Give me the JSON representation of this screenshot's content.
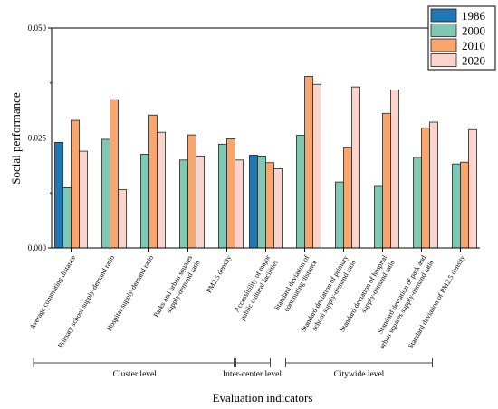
{
  "chart_data": {
    "type": "bar",
    "ylabel": "Social  performance",
    "xlabel": "Evaluation indicators",
    "ylim": [
      0,
      0.05
    ],
    "yticks": [
      "0.000",
      "0.025",
      "0.050"
    ],
    "grid": false,
    "legend_position": "top-right",
    "categories": [
      "Average commuting distance",
      "Primary school supply-demand ratio",
      "Hospital supply-demand ratio",
      "Parks and urban squares supply-demand ratio",
      "PM2.5 density",
      "Accessibility of major public cultural facilities",
      "Standard deviation of commuting distance",
      "Standard deviation of primary school supply-demand ratio",
      "Standard deviation of hospital supply-demand ratio",
      "Standard deviation of park and urban squares supply-demand ratio",
      "Standard deviation of PM2.5 density"
    ],
    "category_lines": [
      [
        "Average commuting distance"
      ],
      [
        "Primary school supply-demand ratio"
      ],
      [
        "Hospital supply-demand ratio"
      ],
      [
        "Parks and urban squares",
        "supply-demand ratio"
      ],
      [
        "PM2.5 density"
      ],
      [
        "Accessibility of major",
        "public cultural facilities"
      ],
      [
        "Standard deviation of",
        "commuting distance"
      ],
      [
        "Standard deviation of primary",
        "school supply-demand ratio"
      ],
      [
        "Standard deviation of hospital",
        "supply-demand ratio"
      ],
      [
        "Standard deviation of park and",
        "urban squares supply-demand ratio"
      ],
      [
        "Standard deviation of PM2.5 density"
      ]
    ],
    "series": [
      {
        "name": "1986",
        "color": "#1f77b4",
        "values": [
          0.024,
          null,
          null,
          null,
          null,
          0.0211,
          null,
          null,
          null,
          null,
          null
        ]
      },
      {
        "name": "2000",
        "color": "#7fc8b4",
        "values": [
          0.0137,
          0.0247,
          0.0213,
          0.02,
          0.0236,
          0.0209,
          0.0256,
          0.015,
          0.014,
          0.0206,
          0.0191
        ]
      },
      {
        "name": "2010",
        "color": "#f9a66e",
        "values": [
          0.029,
          0.0337,
          0.0302,
          0.0257,
          0.0248,
          0.0194,
          0.039,
          0.0228,
          0.0306,
          0.0273,
          0.0195
        ]
      },
      {
        "name": "2020",
        "color": "#fbd3cd",
        "values": [
          0.022,
          0.0133,
          0.0263,
          0.0209,
          0.02,
          0.018,
          0.0372,
          0.0366,
          0.0359,
          0.0286,
          0.0269
        ]
      }
    ],
    "groups": [
      {
        "label": "Cluster level",
        "from": 0,
        "to": 4
      },
      {
        "label": "Inter-center level",
        "from": 4,
        "to": 5
      },
      {
        "label": "Citywide level",
        "from": 5,
        "to": 9
      }
    ]
  }
}
